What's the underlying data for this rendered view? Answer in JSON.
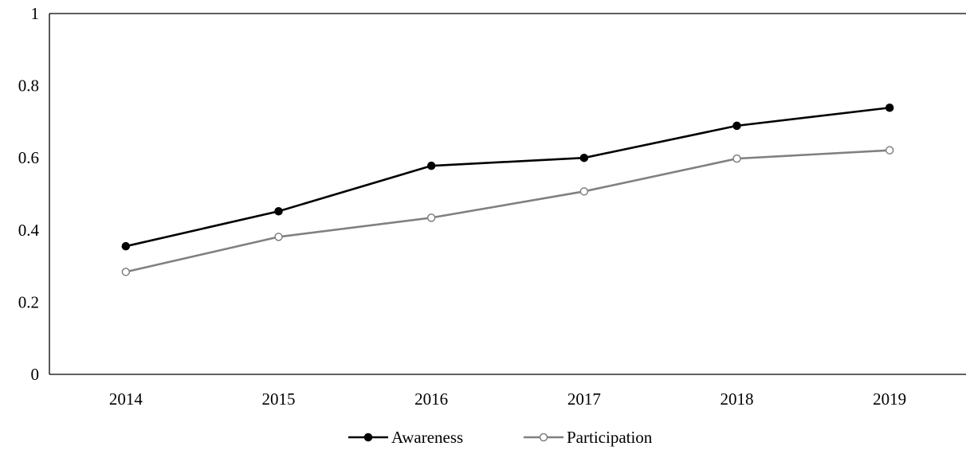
{
  "chart_data": {
    "type": "line",
    "title": "",
    "xlabel": "",
    "ylabel": "",
    "categories": [
      "2014",
      "2015",
      "2016",
      "2017",
      "2018",
      "2019"
    ],
    "ylim": [
      0,
      1
    ],
    "yticks": [
      "0",
      "0.2",
      "0.4",
      "0.6",
      "0.8",
      "1"
    ],
    "grid": false,
    "legend_position": "bottom",
    "series": [
      {
        "name": "Awareness",
        "values": [
          0.355,
          0.452,
          0.578,
          0.6,
          0.689,
          0.739
        ],
        "color": "#000000",
        "marker_fill": "#000000"
      },
      {
        "name": "Participation",
        "values": [
          0.284,
          0.381,
          0.434,
          0.507,
          0.598,
          0.621
        ],
        "color": "#808080",
        "marker_fill": "#ffffff"
      }
    ]
  }
}
